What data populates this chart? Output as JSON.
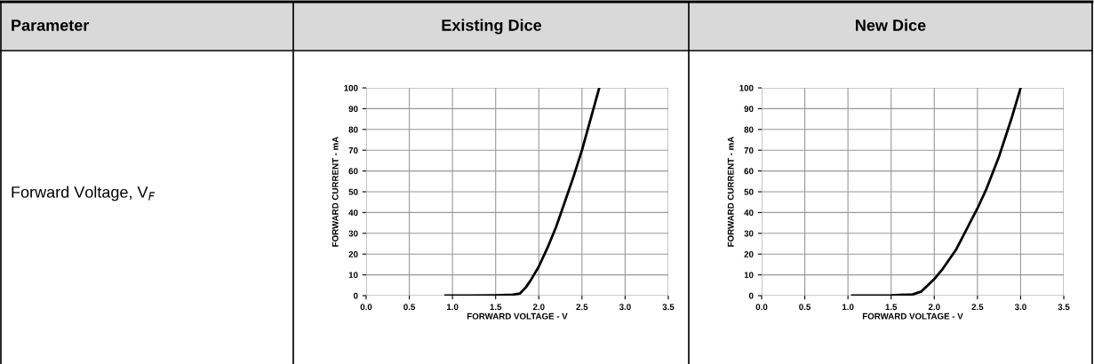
{
  "chart_data": [
    {
      "type": "other",
      "title": "Parameter",
      "annotations": [
        "Forward Voltage, V$_{F}$"
      ]
    },
    {
      "type": "line",
      "title": "Existing Dice",
      "xlabel": "FORWARD VOLTAGE - V",
      "ylabel": "FORWARD CURRENT - mA",
      "xlim": [
        0,
        3.5
      ],
      "ylim": [
        0,
        100
      ],
      "xticks": [
        {
          "value": 0,
          "label": "0.0"
        },
        0.5,
        {
          "value": 1,
          "label": "1.0"
        },
        1.5,
        {
          "value": 2,
          "label": "2.0"
        },
        2.5,
        {
          "value": 3,
          "label": "3.0"
        },
        3.5
      ],
      "yticks": [
        0,
        10,
        20,
        30,
        40,
        50,
        60,
        70,
        80,
        90,
        100
      ],
      "grid": true,
      "line_style": "solid",
      "series": [
        {
          "color": "#000000",
          "x": [
            0.92,
            1.2,
            1.5,
            1.7,
            1.78,
            1.85,
            1.9,
            2.0,
            2.1,
            2.2,
            2.3,
            2.4,
            2.5,
            2.6,
            2.7
          ],
          "values": [
            0,
            0,
            0.2,
            0.5,
            1,
            4,
            7,
            14,
            23,
            33,
            45,
            57,
            70,
            85,
            100
          ]
        }
      ]
    },
    {
      "type": "line",
      "title": "New Dice",
      "xlabel": "FORWARD VOLTAGE - V",
      "ylabel": "FORWARD CURRENT - mA",
      "xlim": [
        0,
        3.5
      ],
      "ylim": [
        0,
        100
      ],
      "xticks": [
        {
          "value": 0,
          "label": "0.0"
        },
        0.5,
        {
          "value": 1,
          "label": "1.0"
        },
        1.5,
        {
          "value": 2,
          "label": "2.0"
        },
        2.5,
        {
          "value": 3,
          "label": "3.0"
        },
        3.5
      ],
      "yticks": [
        0,
        10,
        20,
        30,
        40,
        50,
        60,
        70,
        80,
        90,
        100
      ],
      "grid": true,
      "line_style": "solid",
      "series": [
        {
          "color": "#000000",
          "x": [
            1.05,
            1.3,
            1.5,
            1.75,
            1.85,
            1.95,
            2.0,
            2.1,
            2.25,
            2.4,
            2.5,
            2.6,
            2.75,
            2.9,
            3.0
          ],
          "values": [
            0,
            0.1,
            0.2,
            0.6,
            2,
            6,
            8,
            13,
            22,
            34,
            42,
            51,
            67,
            86,
            100
          ]
        }
      ]
    }
  ]
}
